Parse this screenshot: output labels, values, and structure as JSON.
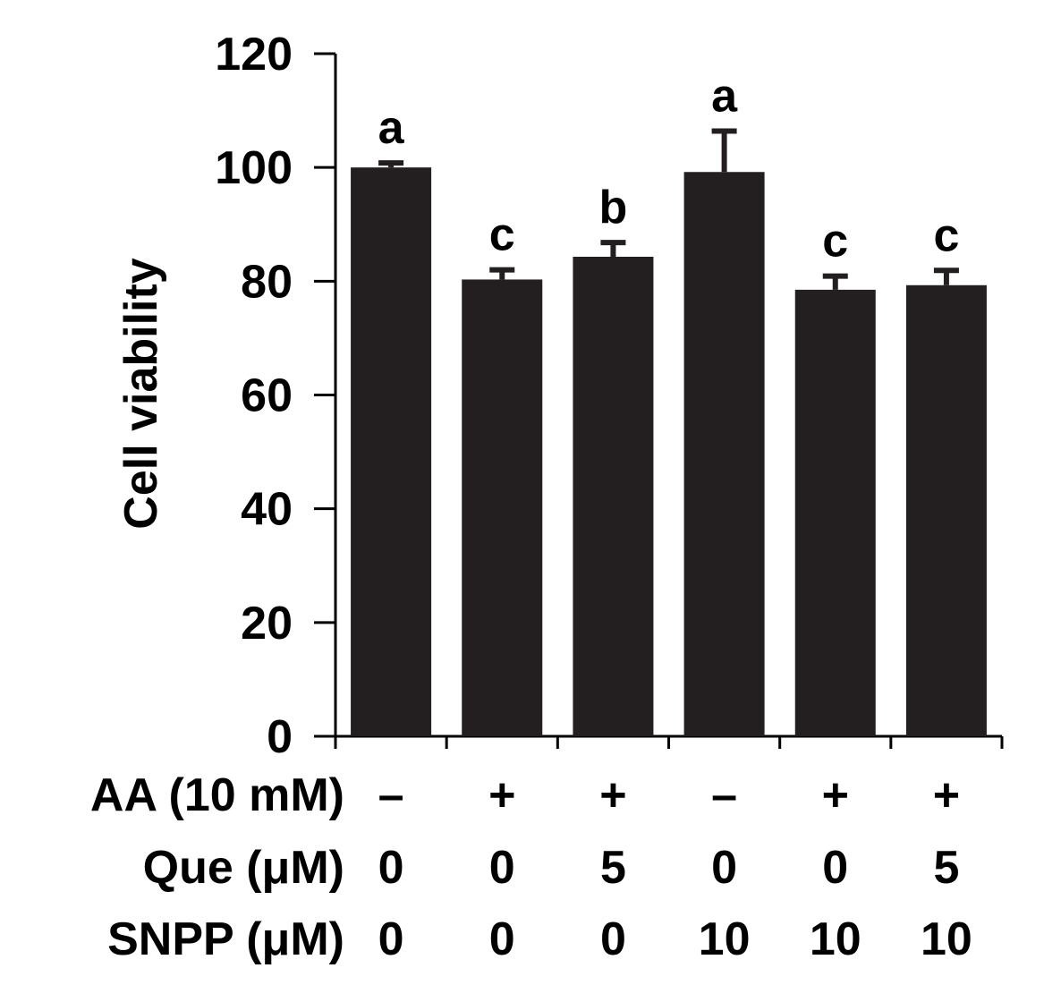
{
  "chart_data": {
    "type": "bar",
    "ylabel": "Cell viability",
    "ylim": [
      0,
      120
    ],
    "yticks": [
      0,
      20,
      40,
      60,
      80,
      100,
      120
    ],
    "bar_color": "#231f20",
    "values": [
      100,
      80.3,
      84.3,
      99.2,
      78.5,
      79.3
    ],
    "errors": [
      0.8,
      1.7,
      2.5,
      7.2,
      2.4,
      2.6
    ],
    "significance": [
      "a",
      "c",
      "b",
      "a",
      "c",
      "c"
    ],
    "treatments": [
      {
        "label": "AA (10 mM)",
        "values": [
          "–",
          "+",
          "+",
          "–",
          "+",
          "+"
        ]
      },
      {
        "label": "Que (μM)",
        "values": [
          "0",
          "0",
          "5",
          "0",
          "0",
          "5"
        ]
      },
      {
        "label": "SNPP (μM)",
        "values": [
          "0",
          "0",
          "0",
          "10",
          "10",
          "10"
        ]
      }
    ]
  }
}
